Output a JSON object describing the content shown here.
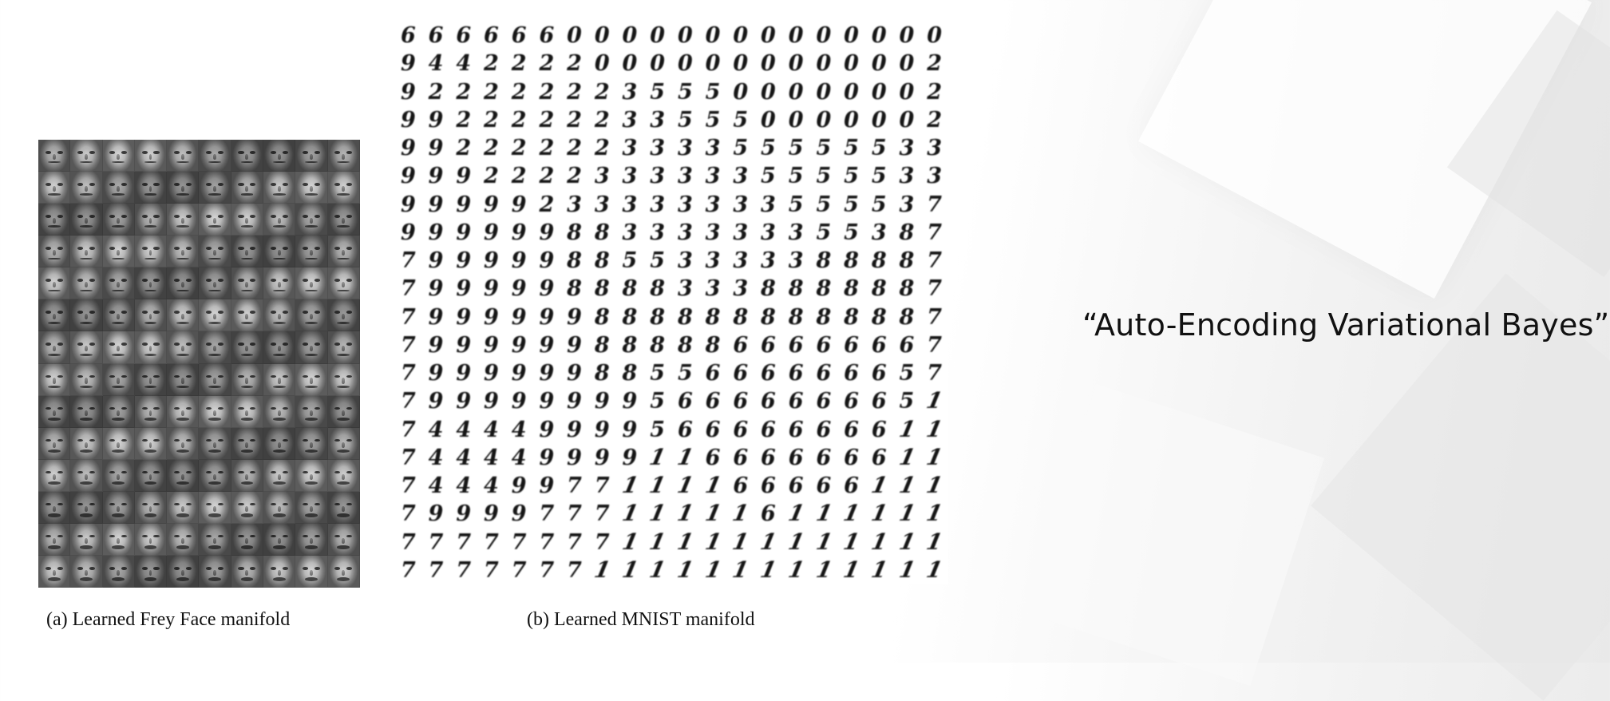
{
  "figure": {
    "captions": {
      "a": "(a) Learned Frey Face manifold",
      "b": "(b) Learned MNIST manifold"
    },
    "frey_face_grid": {
      "rows": 14,
      "cols": 10
    },
    "mnist_grid": {
      "rows": [
        [
          "6",
          "6",
          "6",
          "6",
          "6",
          "6",
          "0",
          "0",
          "0",
          "0",
          "0",
          "0",
          "0",
          "0",
          "0",
          "0",
          "0",
          "0",
          "0",
          "0"
        ],
        [
          "9",
          "4",
          "4",
          "2",
          "2",
          "2",
          "2",
          "0",
          "0",
          "0",
          "0",
          "0",
          "0",
          "0",
          "0",
          "0",
          "0",
          "0",
          "0",
          "2"
        ],
        [
          "9",
          "2",
          "2",
          "2",
          "2",
          "2",
          "2",
          "2",
          "3",
          "5",
          "5",
          "5",
          "0",
          "0",
          "0",
          "0",
          "0",
          "0",
          "0",
          "2"
        ],
        [
          "9",
          "9",
          "2",
          "2",
          "2",
          "2",
          "2",
          "2",
          "3",
          "3",
          "5",
          "5",
          "5",
          "0",
          "0",
          "0",
          "0",
          "0",
          "0",
          "2"
        ],
        [
          "9",
          "9",
          "2",
          "2",
          "2",
          "2",
          "2",
          "2",
          "3",
          "3",
          "3",
          "3",
          "5",
          "5",
          "5",
          "5",
          "5",
          "5",
          "3",
          "3"
        ],
        [
          "9",
          "9",
          "9",
          "2",
          "2",
          "2",
          "2",
          "3",
          "3",
          "3",
          "3",
          "3",
          "3",
          "5",
          "5",
          "5",
          "5",
          "5",
          "3",
          "3"
        ],
        [
          "9",
          "9",
          "9",
          "9",
          "9",
          "2",
          "3",
          "3",
          "3",
          "3",
          "3",
          "3",
          "3",
          "3",
          "5",
          "5",
          "5",
          "5",
          "3",
          "7"
        ],
        [
          "9",
          "9",
          "9",
          "9",
          "9",
          "9",
          "8",
          "8",
          "3",
          "3",
          "3",
          "3",
          "3",
          "3",
          "3",
          "5",
          "5",
          "3",
          "8",
          "7"
        ],
        [
          "7",
          "9",
          "9",
          "9",
          "9",
          "9",
          "8",
          "8",
          "5",
          "5",
          "3",
          "3",
          "3",
          "3",
          "3",
          "8",
          "8",
          "8",
          "8",
          "7"
        ],
        [
          "7",
          "9",
          "9",
          "9",
          "9",
          "9",
          "8",
          "8",
          "8",
          "8",
          "3",
          "3",
          "3",
          "8",
          "8",
          "8",
          "8",
          "8",
          "8",
          "7"
        ],
        [
          "7",
          "9",
          "9",
          "9",
          "9",
          "9",
          "9",
          "8",
          "8",
          "8",
          "8",
          "8",
          "8",
          "8",
          "8",
          "8",
          "8",
          "8",
          "8",
          "7"
        ],
        [
          "7",
          "9",
          "9",
          "9",
          "9",
          "9",
          "9",
          "8",
          "8",
          "8",
          "8",
          "8",
          "6",
          "6",
          "6",
          "6",
          "6",
          "6",
          "6",
          "7"
        ],
        [
          "7",
          "9",
          "9",
          "9",
          "9",
          "9",
          "9",
          "8",
          "8",
          "5",
          "5",
          "6",
          "6",
          "6",
          "6",
          "6",
          "6",
          "6",
          "5",
          "7"
        ],
        [
          "7",
          "9",
          "9",
          "9",
          "9",
          "9",
          "9",
          "9",
          "9",
          "5",
          "6",
          "6",
          "6",
          "6",
          "6",
          "6",
          "6",
          "6",
          "5",
          "1"
        ],
        [
          "7",
          "4",
          "4",
          "4",
          "4",
          "9",
          "9",
          "9",
          "9",
          "5",
          "6",
          "6",
          "6",
          "6",
          "6",
          "6",
          "6",
          "6",
          "1",
          "1"
        ],
        [
          "7",
          "4",
          "4",
          "4",
          "4",
          "9",
          "9",
          "9",
          "9",
          "1",
          "1",
          "6",
          "6",
          "6",
          "6",
          "6",
          "6",
          "6",
          "1",
          "1"
        ],
        [
          "7",
          "4",
          "4",
          "4",
          "9",
          "9",
          "7",
          "7",
          "1",
          "1",
          "1",
          "1",
          "6",
          "6",
          "6",
          "6",
          "6",
          "1",
          "1",
          "1"
        ],
        [
          "7",
          "9",
          "9",
          "9",
          "9",
          "7",
          "7",
          "7",
          "1",
          "1",
          "1",
          "1",
          "1",
          "6",
          "1",
          "1",
          "1",
          "1",
          "1",
          "1"
        ],
        [
          "7",
          "7",
          "7",
          "7",
          "7",
          "7",
          "7",
          "7",
          "1",
          "1",
          "1",
          "1",
          "1",
          "1",
          "1",
          "1",
          "1",
          "1",
          "1",
          "1"
        ],
        [
          "7",
          "7",
          "7",
          "7",
          "7",
          "7",
          "7",
          "1",
          "1",
          "1",
          "1",
          "1",
          "1",
          "1",
          "1",
          "1",
          "1",
          "1",
          "1",
          "1"
        ]
      ]
    }
  },
  "slide": {
    "title": "“Auto-Encoding Variational Bayes”"
  }
}
